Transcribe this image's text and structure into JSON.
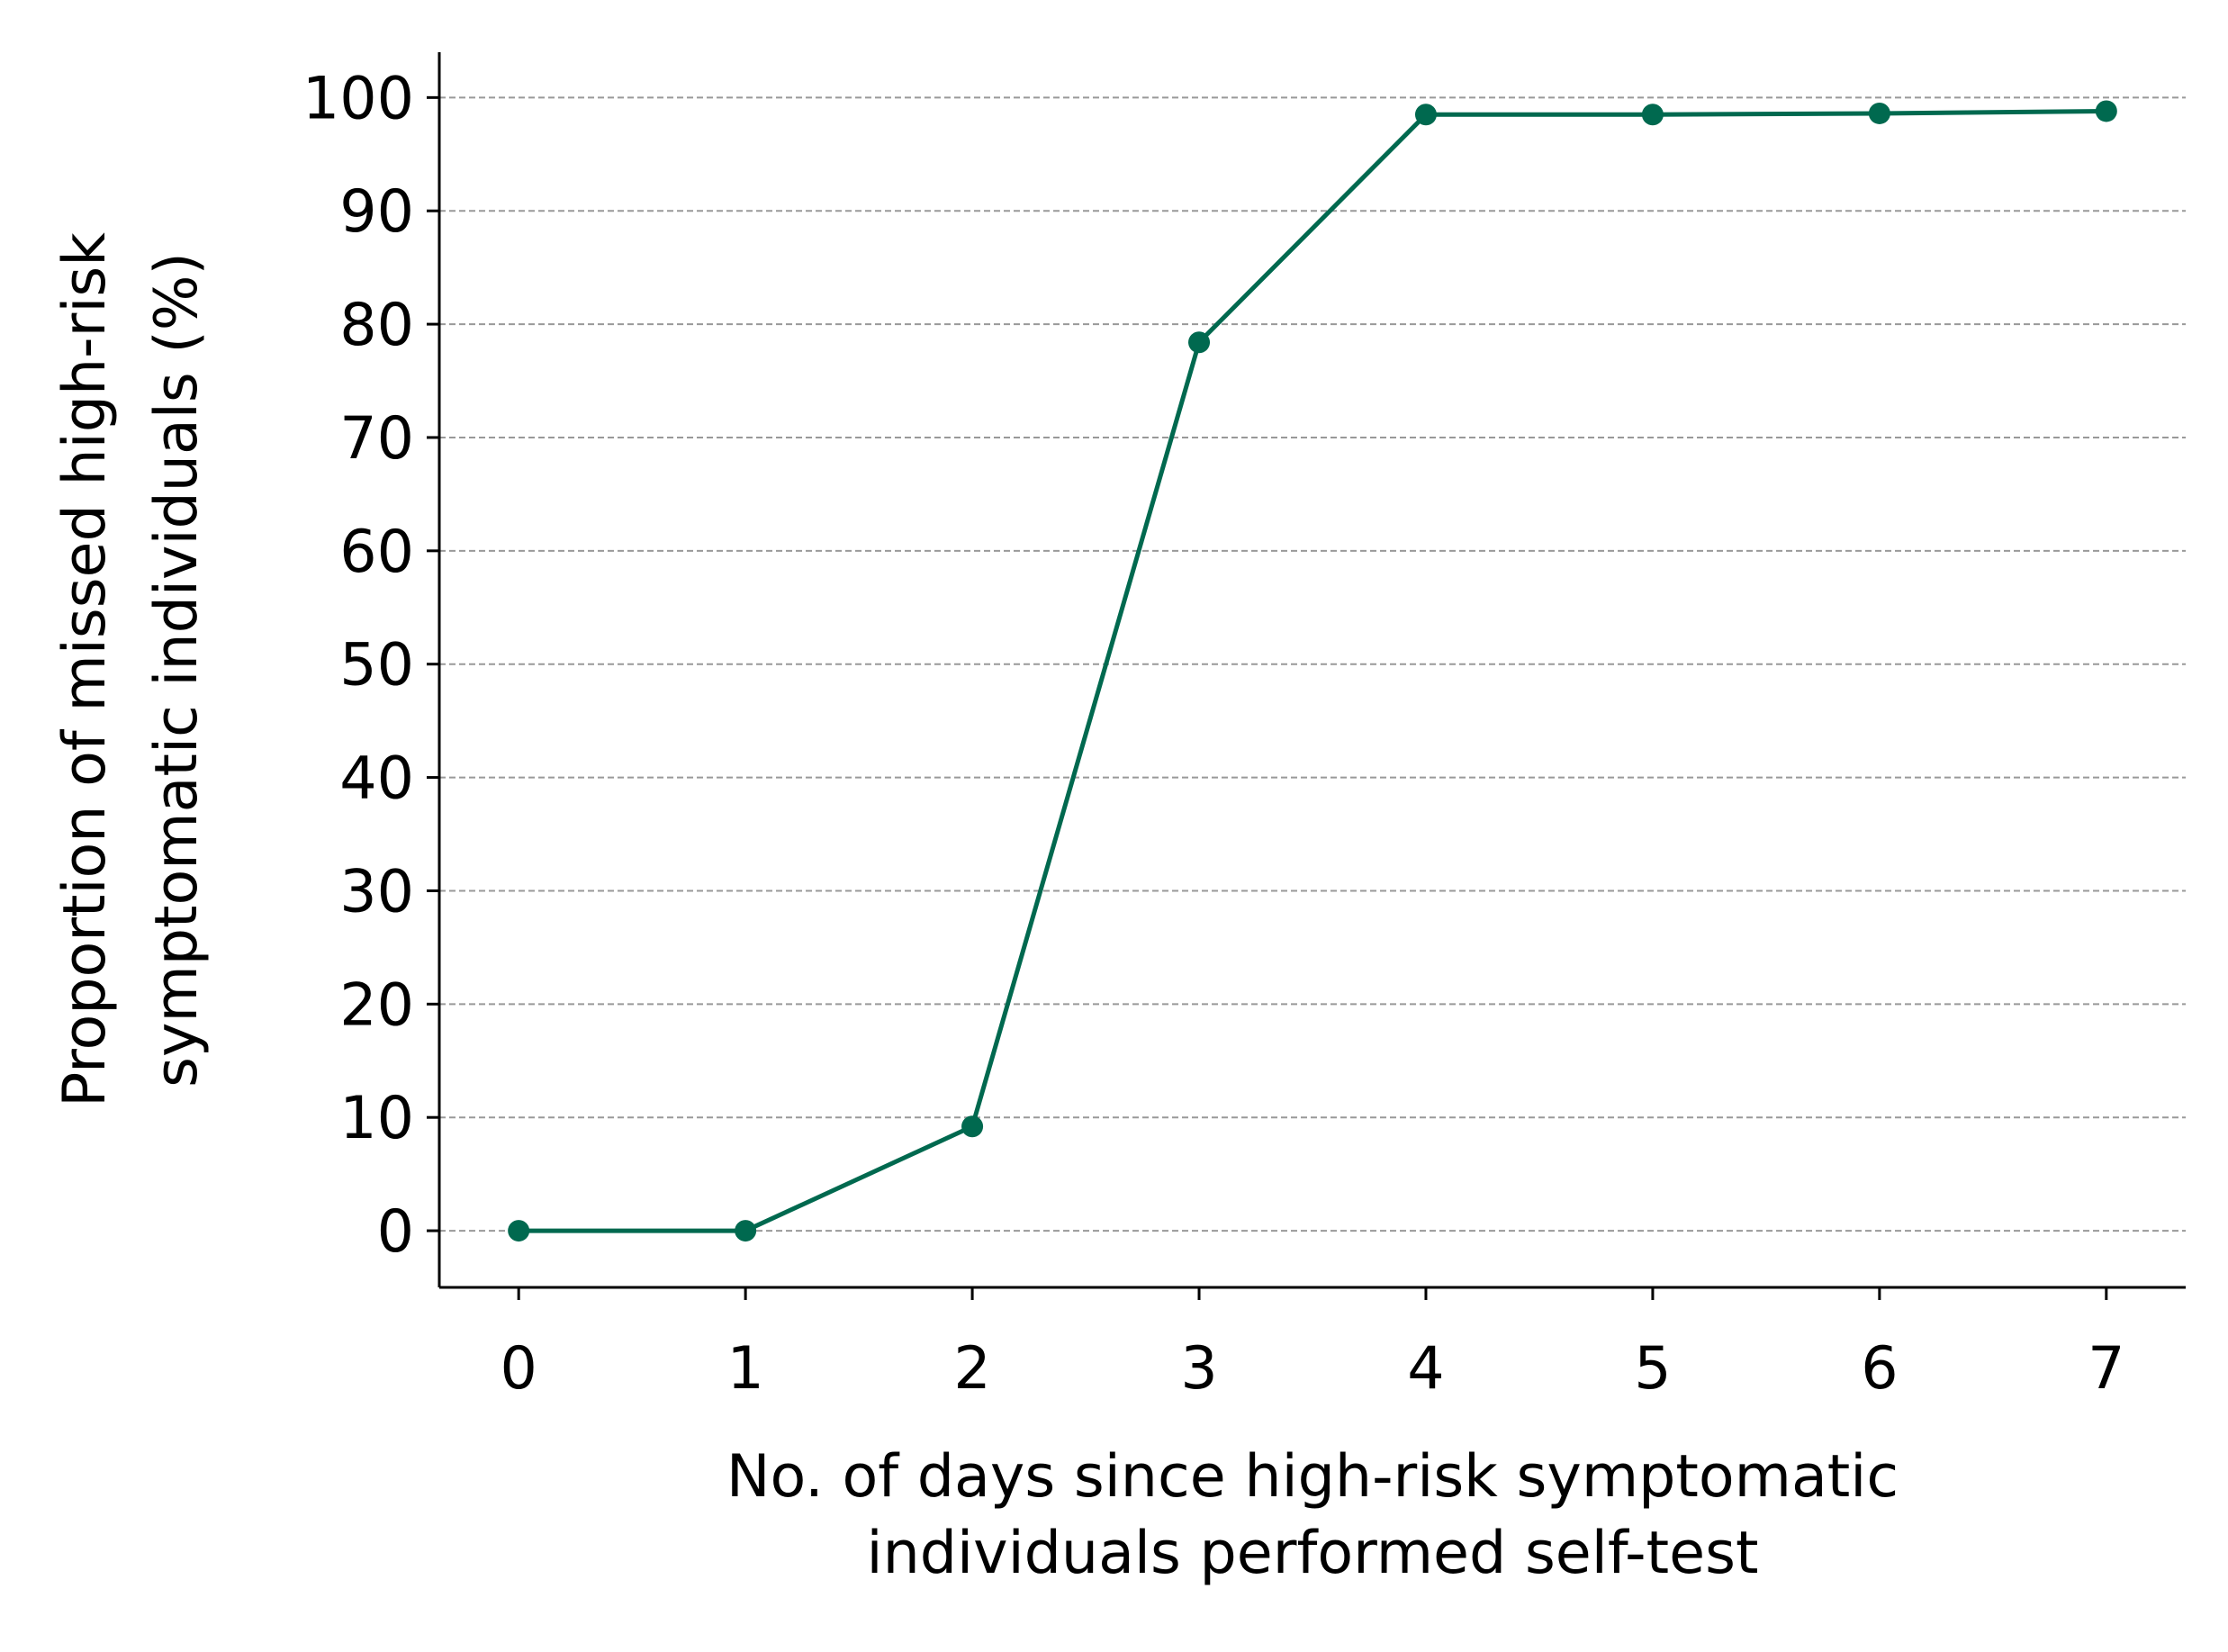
{
  "chart_data": {
    "type": "line",
    "title": "",
    "xlabel": [
      "No. of days since high-risk symptomatic",
      "individuals performed self-test"
    ],
    "ylabel": [
      "Proportion of missed high-risk",
      "symptomatic individuals (%)"
    ],
    "x": [
      0,
      1,
      2,
      3,
      4,
      5,
      6,
      7
    ],
    "series": [
      {
        "values": [
          0,
          0,
          9.2,
          78.4,
          98.5,
          98.5,
          98.6,
          98.8
        ],
        "color": "#00694f"
      }
    ],
    "xlim": [
      -0.35,
      7.35
    ],
    "ylim": [
      -5,
      104
    ],
    "xticks": [
      "0",
      "1",
      "2",
      "3",
      "4",
      "5",
      "6",
      "7"
    ],
    "yticks": [
      "0",
      "10",
      "20",
      "30",
      "40",
      "50",
      "60",
      "70",
      "80",
      "90",
      "100"
    ],
    "grid": "horizontal-dashed",
    "legend": "none",
    "colors": {
      "line": "#00694f",
      "grid": "#999999",
      "axis": "#000000"
    }
  }
}
